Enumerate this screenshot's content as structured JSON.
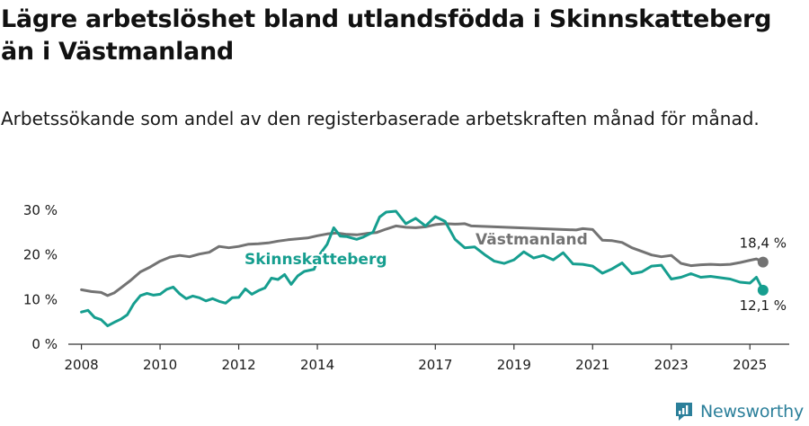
{
  "title": "Lägre arbetslöshet bland utlandsfödda i Skinnskatteberg än i Västmanland",
  "subtitle": "Arbetssökande som andel av den registerbaserade arbetskraften månad för månad.",
  "brand": {
    "name": "Newsworthy",
    "icon": "newsworthy-logo-icon"
  },
  "colors": {
    "skinnskatteberg": "#169e8f",
    "vastmanland": "#737373",
    "axis": "#333333",
    "grid": "#999999",
    "text": "#1a1a1a"
  },
  "chart_data": {
    "type": "line",
    "x_type": "date",
    "xlim": [
      "2007-09",
      "2026-01"
    ],
    "ylim": [
      0,
      30
    ],
    "y_ticks": [
      0,
      10,
      20,
      30
    ],
    "y_tick_labels": [
      "0 %",
      "10 %",
      "20 %",
      "30 %"
    ],
    "x_ticks": [
      "2008-01",
      "2010-01",
      "2012-01",
      "2014-01",
      "2017-01",
      "2019-01",
      "2021-01",
      "2023-01",
      "2025-01"
    ],
    "x_tick_labels": [
      "2008",
      "2010",
      "2012",
      "2014",
      "2017",
      "2019",
      "2021",
      "2023",
      "2025"
    ],
    "grid": false,
    "series": [
      {
        "name": "Västmanland",
        "color": "#737373",
        "end_label": "18,4 %",
        "points": [
          [
            "2008-01",
            12.2
          ],
          [
            "2008-04",
            11.8
          ],
          [
            "2008-07",
            11.6
          ],
          [
            "2008-09",
            10.9
          ],
          [
            "2008-11",
            11.5
          ],
          [
            "2009-01",
            12.6
          ],
          [
            "2009-04",
            14.3
          ],
          [
            "2009-07",
            16.2
          ],
          [
            "2009-10",
            17.3
          ],
          [
            "2010-01",
            18.6
          ],
          [
            "2010-04",
            19.5
          ],
          [
            "2010-07",
            19.9
          ],
          [
            "2010-10",
            19.6
          ],
          [
            "2011-01",
            20.2
          ],
          [
            "2011-04",
            20.6
          ],
          [
            "2011-07",
            21.9
          ],
          [
            "2011-10",
            21.6
          ],
          [
            "2012-01",
            21.9
          ],
          [
            "2012-04",
            22.4
          ],
          [
            "2012-07",
            22.5
          ],
          [
            "2012-10",
            22.7
          ],
          [
            "2013-01",
            23.1
          ],
          [
            "2013-04",
            23.4
          ],
          [
            "2013-07",
            23.6
          ],
          [
            "2013-10",
            23.8
          ],
          [
            "2014-01",
            24.3
          ],
          [
            "2014-04",
            24.7
          ],
          [
            "2014-07",
            24.9
          ],
          [
            "2014-10",
            24.6
          ],
          [
            "2015-01",
            24.5
          ],
          [
            "2015-04",
            24.8
          ],
          [
            "2015-07",
            25.0
          ],
          [
            "2015-10",
            25.8
          ],
          [
            "2016-01",
            26.5
          ],
          [
            "2016-04",
            26.2
          ],
          [
            "2016-07",
            26.1
          ],
          [
            "2016-10",
            26.3
          ],
          [
            "2017-01",
            26.8
          ],
          [
            "2017-04",
            27.0
          ],
          [
            "2017-07",
            26.9
          ],
          [
            "2017-10",
            27.0
          ],
          [
            "2017-12",
            26.5
          ],
          [
            "2020-08",
            25.6
          ],
          [
            "2020-10",
            25.9
          ],
          [
            "2021-01",
            25.7
          ],
          [
            "2021-04",
            23.3
          ],
          [
            "2021-07",
            23.2
          ],
          [
            "2021-10",
            22.8
          ],
          [
            "2022-01",
            21.6
          ],
          [
            "2022-04",
            20.8
          ],
          [
            "2022-07",
            20.0
          ],
          [
            "2022-10",
            19.6
          ],
          [
            "2023-01",
            19.9
          ],
          [
            "2023-04",
            18.1
          ],
          [
            "2023-07",
            17.6
          ],
          [
            "2023-10",
            17.8
          ],
          [
            "2024-01",
            17.9
          ],
          [
            "2024-04",
            17.8
          ],
          [
            "2024-07",
            17.9
          ],
          [
            "2024-10",
            18.3
          ],
          [
            "2025-01",
            18.8
          ],
          [
            "2025-03",
            19.1
          ],
          [
            "2025-05",
            18.4
          ]
        ]
      },
      {
        "name": "Skinnskatteberg",
        "color": "#169e8f",
        "end_label": "12,1 %",
        "points": [
          [
            "2008-01",
            7.2
          ],
          [
            "2008-03",
            7.6
          ],
          [
            "2008-05",
            6.0
          ],
          [
            "2008-07",
            5.5
          ],
          [
            "2008-09",
            4.1
          ],
          [
            "2008-11",
            4.9
          ],
          [
            "2009-01",
            5.6
          ],
          [
            "2009-03",
            6.6
          ],
          [
            "2009-05",
            9.1
          ],
          [
            "2009-07",
            10.9
          ],
          [
            "2009-09",
            11.4
          ],
          [
            "2009-11",
            11.0
          ],
          [
            "2010-01",
            11.2
          ],
          [
            "2010-03",
            12.3
          ],
          [
            "2010-05",
            12.8
          ],
          [
            "2010-07",
            11.3
          ],
          [
            "2010-09",
            10.2
          ],
          [
            "2010-11",
            10.8
          ],
          [
            "2011-01",
            10.4
          ],
          [
            "2011-03",
            9.7
          ],
          [
            "2011-05",
            10.2
          ],
          [
            "2011-07",
            9.6
          ],
          [
            "2011-09",
            9.2
          ],
          [
            "2011-11",
            10.4
          ],
          [
            "2012-01",
            10.5
          ],
          [
            "2012-03",
            12.4
          ],
          [
            "2012-05",
            11.2
          ],
          [
            "2012-07",
            12.0
          ],
          [
            "2012-09",
            12.6
          ],
          [
            "2012-11",
            14.8
          ],
          [
            "2013-01",
            14.5
          ],
          [
            "2013-03",
            15.6
          ],
          [
            "2013-05",
            13.4
          ],
          [
            "2013-07",
            15.3
          ],
          [
            "2013-09",
            16.3
          ],
          [
            "2013-12",
            16.8
          ],
          [
            "2014-02",
            20.4
          ],
          [
            "2014-04",
            22.4
          ],
          [
            "2014-06",
            26.1
          ],
          [
            "2014-08",
            24.2
          ],
          [
            "2014-10",
            24.1
          ],
          [
            "2015-01",
            23.5
          ],
          [
            "2015-03",
            24.0
          ],
          [
            "2015-06",
            25.1
          ],
          [
            "2015-08",
            28.5
          ],
          [
            "2015-10",
            29.6
          ],
          [
            "2016-01",
            29.8
          ],
          [
            "2016-04",
            27.0
          ],
          [
            "2016-07",
            28.2
          ],
          [
            "2016-10",
            26.5
          ],
          [
            "2017-01",
            28.6
          ],
          [
            "2017-04",
            27.5
          ],
          [
            "2017-07",
            23.5
          ],
          [
            "2017-10",
            21.6
          ],
          [
            "2018-01",
            21.8
          ],
          [
            "2018-04",
            20.1
          ],
          [
            "2018-07",
            18.6
          ],
          [
            "2018-10",
            18.1
          ],
          [
            "2019-01",
            18.9
          ],
          [
            "2019-04",
            20.7
          ],
          [
            "2019-07",
            19.3
          ],
          [
            "2019-10",
            19.9
          ],
          [
            "2020-01",
            18.9
          ],
          [
            "2020-04",
            20.5
          ],
          [
            "2020-07",
            18.0
          ],
          [
            "2020-10",
            17.9
          ],
          [
            "2021-01",
            17.5
          ],
          [
            "2021-04",
            15.9
          ],
          [
            "2021-07",
            16.9
          ],
          [
            "2021-10",
            18.2
          ],
          [
            "2022-01",
            15.8
          ],
          [
            "2022-04",
            16.2
          ],
          [
            "2022-07",
            17.5
          ],
          [
            "2022-10",
            17.7
          ],
          [
            "2023-01",
            14.6
          ],
          [
            "2023-04",
            15.0
          ],
          [
            "2023-07",
            15.8
          ],
          [
            "2023-10",
            15.0
          ],
          [
            "2024-01",
            15.2
          ],
          [
            "2024-04",
            14.9
          ],
          [
            "2024-07",
            14.6
          ],
          [
            "2024-10",
            13.9
          ],
          [
            "2025-01",
            13.7
          ],
          [
            "2025-03",
            15.0
          ],
          [
            "2025-05",
            12.1
          ]
        ]
      }
    ]
  }
}
